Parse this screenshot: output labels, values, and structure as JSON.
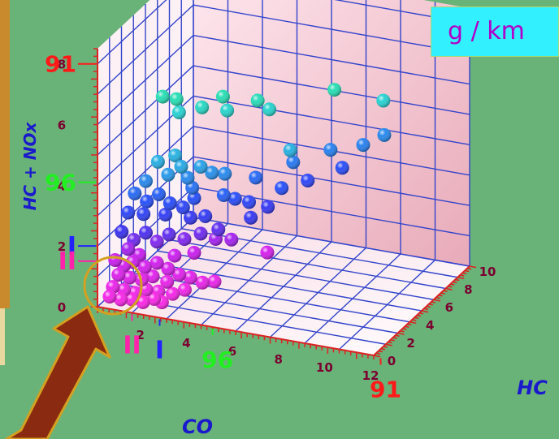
{
  "units_label": "g / km",
  "colors": {
    "background": "#6ab378",
    "units_box_bg": "#33f0ff",
    "units_text": "#b000c8",
    "grid_line": "#3344cc",
    "wall": "#ffe6ee",
    "axis_tick": "#dd2222",
    "tick_label": "#7a0030",
    "axis_title": "#1a1acc",
    "marker_red": "#ff1a1a",
    "marker_green": "#22ee22",
    "marker_blue": "#2222ff",
    "marker_magenta": "#ff22aa",
    "highlight_circle": "#d4a020",
    "arrow": "#8a2a10"
  },
  "chart_data": {
    "type": "scatter",
    "xlabel": "CO",
    "ylabel": "HC",
    "zlabel": "HC + NOx",
    "x_ticks": [
      "2",
      "4",
      "6",
      "8",
      "10",
      "12"
    ],
    "y_ticks": [
      "0",
      "2",
      "4",
      "6",
      "8",
      "10"
    ],
    "z_ticks": [
      "0",
      "2",
      "4",
      "6",
      "8"
    ],
    "xlim": [
      0,
      12
    ],
    "ylim": [
      0,
      10
    ],
    "zlim": [
      0,
      8
    ],
    "grid": true,
    "limit_markers": [
      {
        "label": "91",
        "color": "red",
        "axis": "z",
        "value": 8.0
      },
      {
        "label": "96",
        "color": "green",
        "axis": "z",
        "value": 4.1
      },
      {
        "label": "I",
        "color": "blue",
        "axis": "z",
        "value": 2.0
      },
      {
        "label": "II",
        "color": "magenta",
        "axis": "z",
        "value": 1.5
      },
      {
        "label": "II",
        "color": "magenta",
        "axis": "x",
        "value": 1.5
      },
      {
        "label": "I",
        "color": "blue",
        "axis": "x",
        "value": 2.7
      },
      {
        "label": "96",
        "color": "green",
        "axis": "x",
        "value": 5.0
      },
      {
        "label": "91",
        "color": "red",
        "axis": "x",
        "value": 12.3
      }
    ],
    "points": [
      {
        "x": 2.0,
        "y": 2.0,
        "z": 6.6
      },
      {
        "x": 2.6,
        "y": 2.0,
        "z": 6.6
      },
      {
        "x": 2.5,
        "y": 2.5,
        "z": 6.0
      },
      {
        "x": 3.5,
        "y": 2.5,
        "z": 6.3
      },
      {
        "x": 4.2,
        "y": 3.0,
        "z": 6.6
      },
      {
        "x": 4.3,
        "y": 3.2,
        "z": 6.1
      },
      {
        "x": 5.8,
        "y": 4.0,
        "z": 6.1
      },
      {
        "x": 5.5,
        "y": 3.5,
        "z": 6.5
      },
      {
        "x": 8.0,
        "y": 5.5,
        "z": 6.6
      },
      {
        "x": 9.5,
        "y": 7.0,
        "z": 6.0
      },
      {
        "x": 6.5,
        "y": 4.5,
        "z": 4.7
      },
      {
        "x": 2.0,
        "y": 1.5,
        "z": 4.6
      },
      {
        "x": 2.4,
        "y": 1.6,
        "z": 4.2
      },
      {
        "x": 2.8,
        "y": 2.0,
        "z": 4.4
      },
      {
        "x": 3.0,
        "y": 2.2,
        "z": 4.0
      },
      {
        "x": 2.5,
        "y": 2.1,
        "z": 4.7
      },
      {
        "x": 3.4,
        "y": 2.6,
        "z": 4.3
      },
      {
        "x": 3.8,
        "y": 2.8,
        "z": 4.1
      },
      {
        "x": 3.2,
        "y": 2.2,
        "z": 3.7
      },
      {
        "x": 1.6,
        "y": 1.2,
        "z": 4.0
      },
      {
        "x": 4.2,
        "y": 3.2,
        "z": 4.0
      },
      {
        "x": 6.0,
        "y": 6.0,
        "z": 3.8
      },
      {
        "x": 7.0,
        "y": 7.5,
        "z": 3.9
      },
      {
        "x": 8.0,
        "y": 8.5,
        "z": 3.9
      },
      {
        "x": 8.5,
        "y": 9.5,
        "z": 4.0
      },
      {
        "x": 4.4,
        "y": 2.6,
        "z": 3.5
      },
      {
        "x": 1.2,
        "y": 1.0,
        "z": 3.6
      },
      {
        "x": 1.6,
        "y": 1.3,
        "z": 3.3
      },
      {
        "x": 2.0,
        "y": 1.6,
        "z": 3.5
      },
      {
        "x": 2.4,
        "y": 1.8,
        "z": 3.2
      },
      {
        "x": 2.8,
        "y": 2.2,
        "z": 3.0
      },
      {
        "x": 3.2,
        "y": 2.4,
        "z": 3.3
      },
      {
        "x": 1.0,
        "y": 0.8,
        "z": 3.0
      },
      {
        "x": 1.5,
        "y": 1.2,
        "z": 2.9
      },
      {
        "x": 2.2,
        "y": 1.8,
        "z": 2.8
      },
      {
        "x": 3.6,
        "y": 2.6,
        "z": 2.7
      },
      {
        "x": 3.0,
        "y": 2.5,
        "z": 2.6
      },
      {
        "x": 4.6,
        "y": 3.3,
        "z": 3.2
      },
      {
        "x": 5.0,
        "y": 3.8,
        "z": 3.0
      },
      {
        "x": 5.2,
        "y": 3.5,
        "z": 2.6
      },
      {
        "x": 5.0,
        "y": 4.5,
        "z": 3.6
      },
      {
        "x": 6.0,
        "y": 4.8,
        "z": 3.3
      },
      {
        "x": 5.4,
        "y": 4.8,
        "z": 2.6
      },
      {
        "x": 6.3,
        "y": 6.8,
        "z": 3.0
      },
      {
        "x": 7.3,
        "y": 8.0,
        "z": 3.2
      },
      {
        "x": 4.0,
        "y": 3.0,
        "z": 2.2
      },
      {
        "x": 0.8,
        "y": 0.6,
        "z": 2.4
      },
      {
        "x": 1.2,
        "y": 0.9,
        "z": 2.1
      },
      {
        "x": 1.6,
        "y": 1.2,
        "z": 2.3
      },
      {
        "x": 2.0,
        "y": 1.4,
        "z": 2.0
      },
      {
        "x": 2.4,
        "y": 1.7,
        "z": 2.2
      },
      {
        "x": 2.9,
        "y": 2.1,
        "z": 2.0
      },
      {
        "x": 3.4,
        "y": 2.6,
        "z": 2.1
      },
      {
        "x": 3.8,
        "y": 3.2,
        "z": 1.8
      },
      {
        "x": 4.4,
        "y": 3.4,
        "z": 1.8
      },
      {
        "x": 1.0,
        "y": 0.8,
        "z": 1.8
      },
      {
        "x": 1.4,
        "y": 1.0,
        "z": 1.6
      },
      {
        "x": 2.6,
        "y": 1.8,
        "z": 1.5
      },
      {
        "x": 3.2,
        "y": 2.4,
        "z": 1.5
      },
      {
        "x": 5.5,
        "y": 4.5,
        "z": 1.2
      },
      {
        "x": 0.6,
        "y": 0.4,
        "z": 1.5
      },
      {
        "x": 0.9,
        "y": 0.6,
        "z": 1.3
      },
      {
        "x": 1.2,
        "y": 0.8,
        "z": 1.4
      },
      {
        "x": 1.6,
        "y": 1.1,
        "z": 1.2
      },
      {
        "x": 2.0,
        "y": 1.4,
        "z": 1.3
      },
      {
        "x": 2.4,
        "y": 1.6,
        "z": 1.1
      },
      {
        "x": 0.7,
        "y": 0.5,
        "z": 1.0
      },
      {
        "x": 1.1,
        "y": 0.7,
        "z": 0.9
      },
      {
        "x": 1.5,
        "y": 1.0,
        "z": 0.8
      },
      {
        "x": 1.9,
        "y": 1.2,
        "z": 0.9
      },
      {
        "x": 2.4,
        "y": 1.5,
        "z": 0.7
      },
      {
        "x": 2.8,
        "y": 1.8,
        "z": 0.9
      },
      {
        "x": 3.2,
        "y": 2.0,
        "z": 0.8
      },
      {
        "x": 3.6,
        "y": 2.3,
        "z": 0.6
      },
      {
        "x": 4.0,
        "y": 2.6,
        "z": 0.6
      },
      {
        "x": 0.5,
        "y": 0.4,
        "z": 0.6
      },
      {
        "x": 0.9,
        "y": 0.6,
        "z": 0.5
      },
      {
        "x": 1.3,
        "y": 0.8,
        "z": 0.4
      },
      {
        "x": 1.7,
        "y": 1.0,
        "z": 0.5
      },
      {
        "x": 2.1,
        "y": 1.3,
        "z": 0.4
      },
      {
        "x": 2.6,
        "y": 1.6,
        "z": 0.3
      },
      {
        "x": 3.0,
        "y": 1.9,
        "z": 0.4
      },
      {
        "x": 0.4,
        "y": 0.3,
        "z": 0.3
      },
      {
        "x": 0.8,
        "y": 0.5,
        "z": 0.2
      },
      {
        "x": 1.2,
        "y": 0.7,
        "z": 0.2
      },
      {
        "x": 1.6,
        "y": 0.9,
        "z": 0.1
      },
      {
        "x": 2.0,
        "y": 1.1,
        "z": 0.2
      },
      {
        "x": 2.3,
        "y": 1.2,
        "z": 0.1
      }
    ]
  }
}
